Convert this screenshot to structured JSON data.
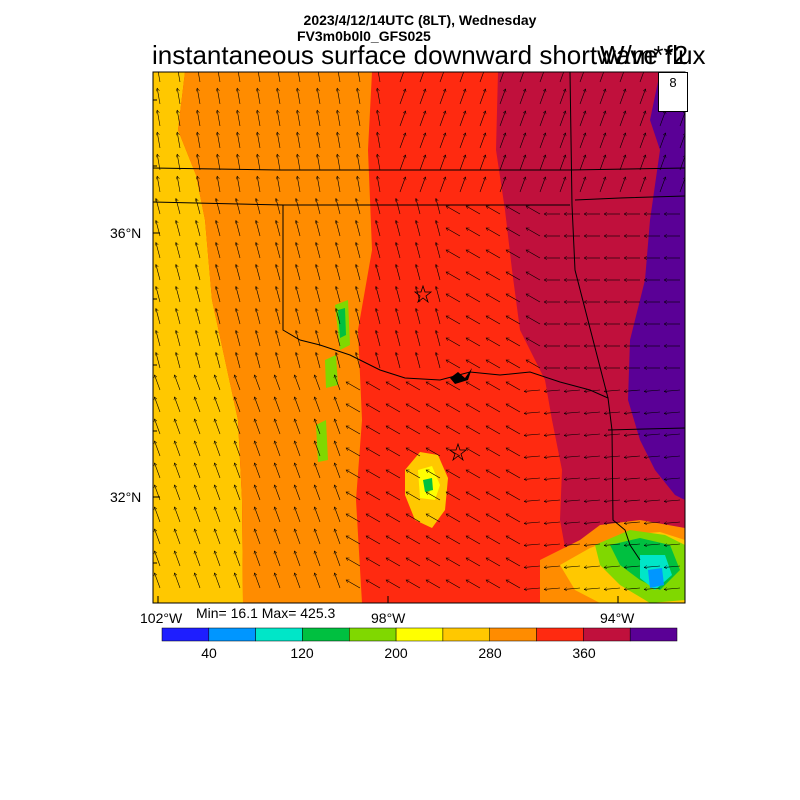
{
  "header": {
    "datetime": "2023/4/12/14UTC (8LT), Wednesday",
    "model": "FV3m0b0l0_GFS025",
    "field": "instantaneous surface downward shortwave flux",
    "units": "W/m**2"
  },
  "map": {
    "lat_labels": [
      "36°N",
      "32°N"
    ],
    "lon_labels": [
      "102°W",
      "98°W",
      "94°W"
    ],
    "reference_vector": "8",
    "stats": "Min= 16.1 Max= 425.3"
  },
  "colorbar": {
    "colors": [
      "#1e1eff",
      "#0096ff",
      "#00e6c8",
      "#00c040",
      "#80d800",
      "#ffff00",
      "#ffc800",
      "#ff8c00",
      "#ff2a10",
      "#c0103c",
      "#5a0096"
    ],
    "labels": [
      "40",
      "120",
      "200",
      "280",
      "360"
    ]
  },
  "markers": [
    {
      "name": "city-star-oklahoma-city"
    },
    {
      "name": "city-star-dallas"
    }
  ]
}
